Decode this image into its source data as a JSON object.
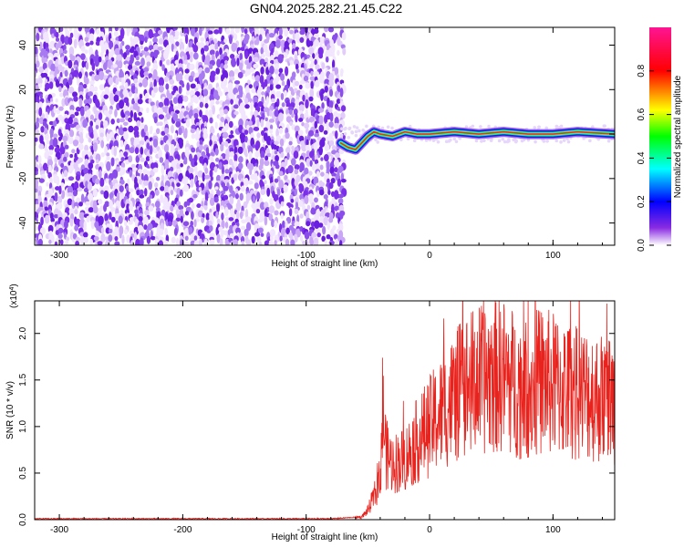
{
  "title": "GN04.2025.282.21.45.C22",
  "chart_data": [
    {
      "type": "heatmap",
      "xlabel": "Height of straight line (km)",
      "ylabel": "Frequency (Hz)",
      "xlim": [
        -320,
        150
      ],
      "ylim": [
        -50,
        48
      ],
      "x_ticks": [
        -300,
        -200,
        -100,
        0,
        100
      ],
      "y_ticks": [
        -40,
        -20,
        0,
        20,
        40
      ],
      "colorbar": {
        "label": "Normalized spectral amplitude",
        "range": [
          0,
          1
        ],
        "ticks": [
          "0.0",
          "0.2",
          "0.4",
          "0.6",
          "0.8"
        ],
        "colors": [
          "#ffffff",
          "#8a2be2",
          "#0000ff",
          "#00ffff",
          "#00ff00",
          "#ffff00",
          "#ff0000",
          "#ff1493"
        ]
      },
      "noise_region": {
        "x_range": [
          -320,
          -72
        ],
        "y_range": [
          -50,
          48
        ],
        "level": "0.0-0.3",
        "color": "#7b2fe8"
      },
      "ridge": {
        "x": [
          -72,
          -66,
          -60,
          -55,
          -50,
          -45,
          -40,
          -30,
          -20,
          -10,
          0,
          20,
          40,
          60,
          80,
          100,
          120,
          150
        ],
        "y": [
          -4,
          -6,
          -7,
          -4,
          -1,
          1,
          0,
          -1,
          1,
          0,
          0,
          1,
          0,
          1,
          0,
          0,
          1,
          0
        ]
      }
    },
    {
      "type": "line",
      "xlabel": "Height of straight line (km)",
      "ylabel": "SNR (10 * v/v)",
      "multiplier": "(x10^4)",
      "xlim": [
        -320,
        150
      ],
      "ylim": [
        0,
        2.35
      ],
      "x_ticks": [
        -300,
        -200,
        -100,
        0,
        100
      ],
      "y_ticks": [
        "0.0",
        "0.5",
        "1.0",
        "1.5",
        "2.0"
      ],
      "series": [
        {
          "color": "#e8221c",
          "x": [
            -320,
            -250,
            -150,
            -80,
            -55,
            -50,
            -45,
            -40,
            -38,
            -35,
            -30,
            -20,
            -10,
            0,
            10,
            20,
            30,
            40,
            50,
            60,
            70,
            80,
            90,
            100,
            110,
            120,
            130,
            140,
            150
          ],
          "y": [
            0.01,
            0.01,
            0.01,
            0.01,
            0.03,
            0.1,
            0.25,
            0.45,
            1.2,
            0.7,
            0.6,
            0.65,
            0.85,
            1.0,
            1.15,
            1.3,
            1.45,
            1.5,
            1.55,
            1.55,
            1.45,
            1.4,
            1.5,
            1.45,
            1.4,
            1.35,
            1.35,
            1.3,
            1.3
          ]
        }
      ]
    }
  ],
  "labels": {
    "multiplier_base": "(x10",
    "multiplier_exp": "4",
    "multiplier_close": ")"
  }
}
